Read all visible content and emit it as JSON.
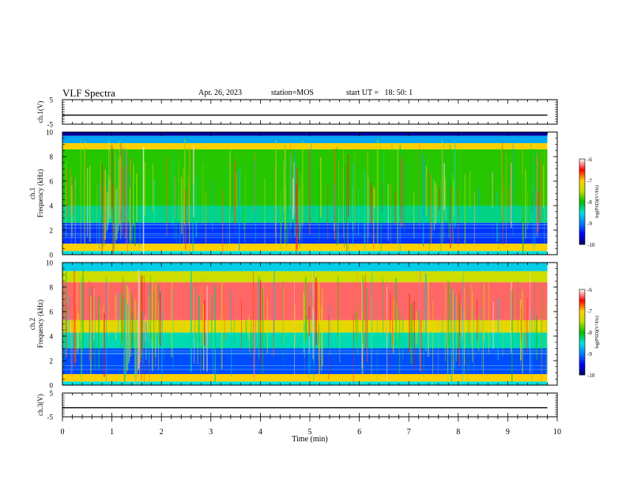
{
  "header": {
    "title": "VLF Spectra",
    "date": "Apr. 26, 2023",
    "station": "station=MOS",
    "start": "start UT =   18: 50: 1"
  },
  "colors": {
    "colormap": [
      "#000060",
      "#0000ff",
      "#0080ff",
      "#00e0e0",
      "#00c000",
      "#c0e000",
      "#ffd000",
      "#ff0000",
      "#ffffff"
    ]
  },
  "chart_data": [
    {
      "type": "line",
      "panel": "ch1-waveform",
      "ylabel": "ch.1(V)",
      "ylim": [
        -5,
        5
      ],
      "yticks": [
        "5",
        "-5"
      ],
      "x": [
        0,
        10
      ],
      "series": [
        {
          "values": [
            -1.3,
            -1.3
          ]
        }
      ]
    },
    {
      "type": "heatmap",
      "panel": "ch1-spectrogram",
      "ylabel": "ch.1\nFrequency (kHz)",
      "ylim": [
        0,
        10
      ],
      "yticks": [
        "0",
        "2",
        "4",
        "6",
        "8",
        "10"
      ],
      "xlim": [
        0,
        10
      ],
      "data_extent_x": [
        0,
        9.8
      ],
      "colorbar": {
        "label": "log(PSD)(V²/Hz)",
        "range": [
          -10,
          -6
        ],
        "ticks": [
          "-10",
          "-9",
          "-8",
          "-7",
          "-6"
        ]
      },
      "bands": [
        {
          "f": [
            0,
            0.3
          ],
          "logpsd": -8.5
        },
        {
          "f": [
            0.3,
            0.9
          ],
          "logpsd": -7.0
        },
        {
          "f": [
            0.9,
            2.6
          ],
          "logpsd": -9.3
        },
        {
          "f": [
            2.6,
            4.0
          ],
          "logpsd": -8.3
        },
        {
          "f": [
            4.0,
            8.6
          ],
          "logpsd": -7.9
        },
        {
          "f": [
            8.6,
            9.1
          ],
          "logpsd": -7.0
        },
        {
          "f": [
            9.1,
            9.7
          ],
          "logpsd": -8.8
        },
        {
          "f": [
            9.7,
            10
          ],
          "logpsd": -9.8
        }
      ]
    },
    {
      "type": "heatmap",
      "panel": "ch2-spectrogram",
      "ylabel": "ch.2\nFrequency (kHz)",
      "ylim": [
        0,
        10
      ],
      "yticks": [
        "0",
        "2",
        "4",
        "6",
        "8",
        "10"
      ],
      "xlim": [
        0,
        10
      ],
      "data_extent_x": [
        0,
        9.8
      ],
      "colorbar": {
        "label": "log(PSD)(V²/Hz)",
        "range": [
          -10,
          -6
        ],
        "ticks": [
          "-10",
          "-9",
          "-8",
          "-7",
          "-6"
        ]
      },
      "bands": [
        {
          "f": [
            0,
            0.3
          ],
          "logpsd": -8.5
        },
        {
          "f": [
            0.3,
            0.9
          ],
          "logpsd": -7.0
        },
        {
          "f": [
            0.9,
            3.0
          ],
          "logpsd": -9.2
        },
        {
          "f": [
            3.0,
            4.3
          ],
          "logpsd": -8.4
        },
        {
          "f": [
            4.3,
            5.3
          ],
          "logpsd": -7.2
        },
        {
          "f": [
            5.3,
            8.4
          ],
          "logpsd": -6.3
        },
        {
          "f": [
            8.4,
            9.3
          ],
          "logpsd": -7.4
        },
        {
          "f": [
            9.3,
            10
          ],
          "logpsd": -8.6
        }
      ]
    },
    {
      "type": "line",
      "panel": "ch3-waveform",
      "ylabel": "ch.3(V)",
      "ylim": [
        -5,
        5
      ],
      "yticks": [
        "5",
        "-5"
      ],
      "x": [
        0,
        10
      ],
      "series": [
        {
          "values": [
            -1.2,
            -1.2
          ]
        }
      ]
    }
  ],
  "x_axis": {
    "label": "Time (min)",
    "range": [
      0,
      10
    ],
    "ticks": [
      "0",
      "1",
      "2",
      "3",
      "4",
      "5",
      "6",
      "7",
      "8",
      "9",
      "10"
    ]
  }
}
